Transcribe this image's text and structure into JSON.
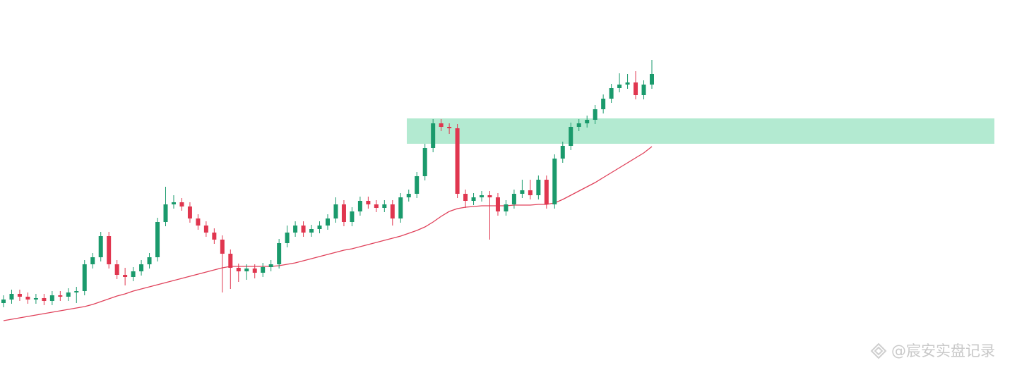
{
  "chart_data": {
    "type": "candlestick",
    "open": [
      95,
      100,
      108,
      104,
      100,
      102,
      98,
      106,
      104,
      110,
      112,
      150,
      160,
      190,
      150,
      135,
      132,
      140,
      150,
      160,
      210,
      235,
      238,
      232,
      215,
      205,
      195,
      185,
      165,
      145,
      140,
      144,
      138,
      146,
      150,
      180,
      195,
      205,
      195,
      200,
      205,
      215,
      235,
      210,
      225,
      240,
      235,
      230,
      235,
      215,
      245,
      250,
      275,
      315,
      350,
      345,
      343,
      250,
      240,
      245,
      248,
      245,
      225,
      235,
      250,
      255,
      248,
      270,
      235,
      300,
      318,
      345,
      350,
      355,
      370,
      385,
      400,
      405,
      408,
      390,
      405
    ],
    "high": [
      106,
      114,
      114,
      110,
      108,
      108,
      112,
      112,
      116,
      118,
      156,
      166,
      196,
      196,
      156,
      145,
      146,
      156,
      166,
      216,
      260,
      248,
      244,
      238,
      221,
      211,
      201,
      191,
      171,
      151,
      150,
      150,
      152,
      156,
      186,
      205,
      211,
      211,
      206,
      211,
      221,
      245,
      241,
      231,
      246,
      246,
      241,
      241,
      241,
      251,
      256,
      281,
      321,
      356,
      356,
      350,
      349,
      256,
      251,
      254,
      254,
      251,
      241,
      256,
      270,
      270,
      276,
      276,
      306,
      324,
      351,
      356,
      361,
      376,
      391,
      406,
      421,
      420,
      424,
      411,
      440
    ],
    "low": [
      89,
      94,
      98,
      94,
      94,
      92,
      92,
      98,
      98,
      95,
      106,
      144,
      154,
      144,
      129,
      120,
      126,
      134,
      144,
      154,
      204,
      229,
      226,
      209,
      199,
      189,
      179,
      110,
      115,
      125,
      128,
      130,
      132,
      140,
      144,
      174,
      189,
      189,
      189,
      194,
      199,
      209,
      204,
      204,
      219,
      229,
      224,
      224,
      205,
      209,
      239,
      244,
      269,
      309,
      339,
      335,
      244,
      230,
      234,
      239,
      185,
      219,
      219,
      229,
      244,
      242,
      242,
      229,
      229,
      294,
      312,
      339,
      344,
      349,
      364,
      379,
      394,
      399,
      384,
      384,
      399
    ],
    "close": [
      100,
      108,
      104,
      100,
      102,
      98,
      106,
      104,
      110,
      112,
      150,
      160,
      190,
      150,
      135,
      132,
      140,
      150,
      160,
      210,
      235,
      238,
      232,
      215,
      205,
      195,
      185,
      165,
      145,
      140,
      144,
      138,
      146,
      150,
      180,
      195,
      205,
      195,
      200,
      205,
      215,
      235,
      210,
      225,
      240,
      235,
      230,
      235,
      215,
      245,
      250,
      275,
      315,
      350,
      345,
      343,
      250,
      240,
      245,
      248,
      245,
      225,
      235,
      250,
      255,
      248,
      270,
      235,
      300,
      318,
      345,
      350,
      355,
      370,
      385,
      400,
      405,
      408,
      390,
      405,
      420
    ],
    "ma": {
      "color": "#e0415a",
      "values": [
        70,
        72,
        74,
        76,
        78,
        80,
        82,
        84,
        86,
        88,
        90,
        93,
        97,
        101,
        105,
        108,
        112,
        115,
        118,
        121,
        124,
        127,
        130,
        133,
        136,
        139,
        142,
        145,
        147,
        147,
        147,
        147,
        147,
        147,
        148,
        150,
        152,
        155,
        158,
        161,
        164,
        167,
        170,
        172,
        175,
        178,
        181,
        184,
        187,
        190,
        194,
        198,
        203,
        210,
        218,
        225,
        229,
        231,
        232,
        233,
        233,
        233,
        233,
        234,
        234,
        234,
        235,
        235,
        237,
        242,
        248,
        254,
        260,
        266,
        273,
        280,
        287,
        294,
        301,
        308,
        317
      ]
    },
    "zone": {
      "low": 321,
      "high": 357,
      "color": "#b3ead1"
    },
    "up_color": "#1a9a6c",
    "down_color": "#e0364f",
    "ylim": [
      0,
      525
    ],
    "watermark": "@宸安实盘记录"
  }
}
